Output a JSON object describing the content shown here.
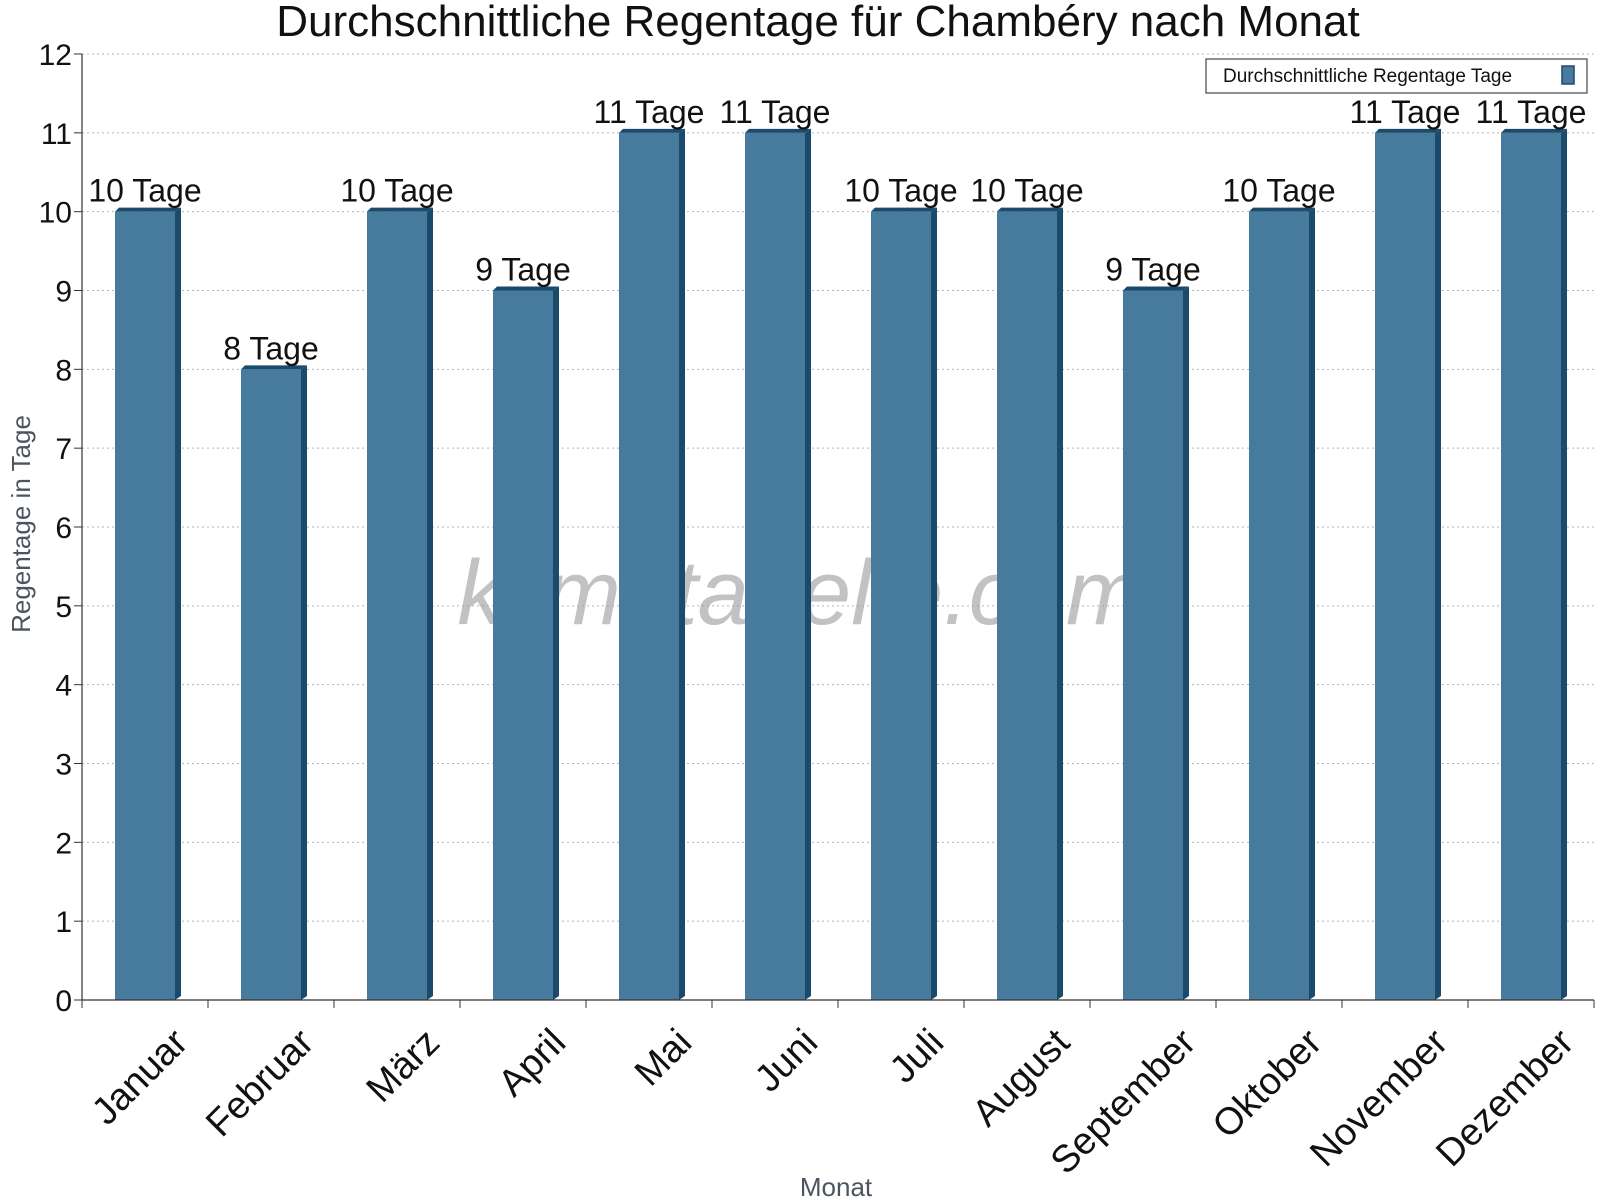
{
  "chart_data": {
    "type": "bar",
    "title": "Durchschnittliche Regentage für Chambéry nach Monat",
    "xlabel": "Monat",
    "ylabel": "Regentage in Tage",
    "ylim": [
      0,
      12
    ],
    "yticks": [
      0,
      1,
      2,
      3,
      4,
      5,
      6,
      7,
      8,
      9,
      10,
      11,
      12
    ],
    "grid": true,
    "legend_position": "top-right",
    "categories": [
      "Januar",
      "Februar",
      "März",
      "April",
      "Mai",
      "Juni",
      "Juli",
      "August",
      "September",
      "Oktober",
      "November",
      "Dezember"
    ],
    "series": [
      {
        "name": "Durchschnittliche Regentage Tage",
        "values": [
          10,
          8,
          10,
          9,
          11,
          11,
          10,
          10,
          9,
          10,
          11,
          11
        ],
        "data_labels": [
          "10 Tage",
          "8 Tage",
          "10 Tage",
          "9 Tage",
          "11 Tage",
          "11 Tage",
          "10 Tage",
          "10 Tage",
          "9 Tage",
          "10 Tage",
          "11 Tage",
          "11 Tage"
        ],
        "color": "#467b9e",
        "shade_color": "#1b4a6b"
      }
    ],
    "watermark": "klimatabelle.com"
  }
}
